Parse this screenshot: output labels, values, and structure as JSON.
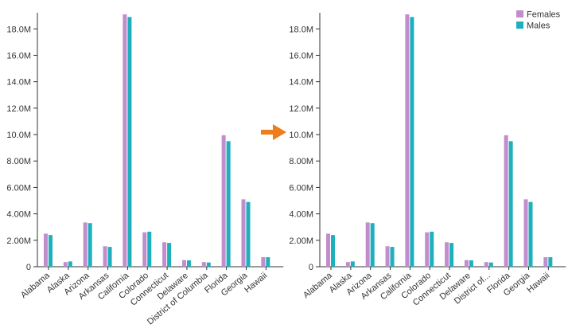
{
  "colors": {
    "females": "#c18dcc",
    "males": "#1fb0bd",
    "arrow": "#ee7d1a",
    "axis": "#333333"
  },
  "transition_arrow": {
    "icon": "arrow-right-icon"
  },
  "chart_data": [
    {
      "type": "bar",
      "categories": [
        "Alabama",
        "Alaska",
        "Arizona",
        "Arkansas",
        "California",
        "Colorado",
        "Connecticut",
        "Delaware",
        "District of Columbia",
        "Florida",
        "Georgia",
        "Hawaii"
      ],
      "series": [
        {
          "name": "Females",
          "values": [
            2.5,
            0.35,
            3.35,
            1.55,
            19.1,
            2.6,
            1.85,
            0.5,
            0.35,
            9.95,
            5.1,
            0.72
          ]
        },
        {
          "name": "Males",
          "values": [
            2.4,
            0.4,
            3.3,
            1.5,
            18.9,
            2.65,
            1.8,
            0.48,
            0.32,
            9.5,
            4.9,
            0.72
          ]
        }
      ],
      "yticks": [
        "0",
        "2.00M",
        "4.00M",
        "6.00M",
        "8.00M",
        "10.0M",
        "12.0M",
        "14.0M",
        "16.0M",
        "18.0M"
      ],
      "ylim": [
        0,
        19.1
      ],
      "value_unit": "millions",
      "legend": null,
      "grid": false
    },
    {
      "type": "bar",
      "categories": [
        "Alabama",
        "Alaska",
        "Arizona",
        "Arkansas",
        "California",
        "Colorado",
        "Connecticut",
        "Delaware",
        "District of...",
        "Florida",
        "Georgia",
        "Hawaii"
      ],
      "series": [
        {
          "name": "Females",
          "values": [
            2.5,
            0.35,
            3.35,
            1.55,
            19.1,
            2.6,
            1.85,
            0.5,
            0.35,
            9.95,
            5.1,
            0.72
          ]
        },
        {
          "name": "Males",
          "values": [
            2.4,
            0.4,
            3.3,
            1.5,
            18.9,
            2.65,
            1.8,
            0.48,
            0.32,
            9.5,
            4.9,
            0.72
          ]
        }
      ],
      "yticks": [
        "0",
        "2.00M",
        "4.00M",
        "6.00M",
        "8.00M",
        "10.0M",
        "12.0M",
        "14.0M",
        "16.0M",
        "18.0M"
      ],
      "ylim": [
        0,
        19.1
      ],
      "value_unit": "millions",
      "legend": {
        "placement": "top-right",
        "entries": [
          "Females",
          "Males"
        ]
      },
      "grid": false
    }
  ]
}
